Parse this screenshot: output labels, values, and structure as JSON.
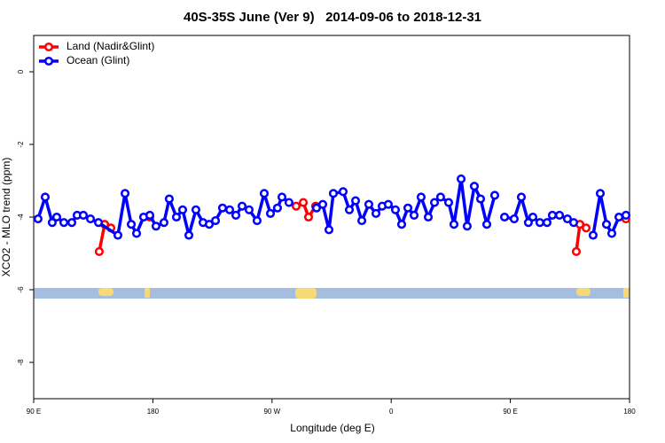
{
  "chart_data": {
    "type": "line",
    "title": "40S-35S June (Ver 9)   2014-09-06 to 2018-12-31",
    "xlabel": "Longitude (deg E)",
    "ylabel": "XCO2 - MLO trend (ppm)",
    "xlim": [
      90,
      540
    ],
    "xticks": [
      {
        "value": 90,
        "label": "90 E"
      },
      {
        "value": 180,
        "label": "180"
      },
      {
        "value": 270,
        "label": "90 W"
      },
      {
        "value": 360,
        "label": "0"
      },
      {
        "value": 450,
        "label": "90 E"
      },
      {
        "value": 540,
        "label": "180"
      }
    ],
    "ylim": [
      -9,
      1
    ],
    "yticks": [
      0,
      -2,
      -4,
      -6,
      -8
    ],
    "legend": "top-left",
    "series": [
      {
        "name": "Land (Nadir&Glint)",
        "color": "#ff0000",
        "x": [
          139.5,
          143.6,
          148.3,
          null,
          177.7,
          null,
          288.2,
          293.6,
          297.6,
          302.9,
          null,
          499.8,
          502.5,
          507.2,
          null,
          537.3
        ],
        "values": [
          -4.95,
          -4.2,
          -4.3,
          null,
          -4.0,
          null,
          -3.7,
          -3.6,
          -4.0,
          -3.7,
          null,
          -4.95,
          -4.2,
          -4.3,
          null,
          -4.05
        ]
      },
      {
        "name": "Ocean (Glint)",
        "color": "#0000ff",
        "x": [
          93.3,
          98.7,
          104,
          107.4,
          112.8,
          118.8,
          122.8,
          127.5,
          132.9,
          138.9,
          153.6,
          159,
          163.7,
          167.7,
          173,
          177.7,
          182.4,
          188.4,
          192.4,
          197.8,
          202.5,
          207.2,
          212.5,
          217.9,
          222.6,
          227.3,
          232.6,
          238,
          242.7,
          247.4,
          252.7,
          258.7,
          264.1,
          268.8,
          274.1,
          277.5,
          282.8,
          null,
          303.6,
          308.3,
          313,
          316.3,
          323.7,
          328.4,
          333.1,
          337.8,
          343.1,
          348.5,
          353.2,
          357.8,
          363.2,
          367.9,
          372.6,
          377.3,
          382.6,
          388,
          392.7,
          397.3,
          403.4,
          407.4,
          412.8,
          417.4,
          422.8,
          427.5,
          432.2,
          438.2,
          null,
          445.6,
          452.9,
          458.3,
          463.6,
          467,
          472.3,
          477.7,
          481.7,
          487.1,
          493.1,
          497.8,
          null,
          512.5,
          517.9,
          522.6,
          526.6,
          532,
          537.3
        ],
        "values": [
          -4.05,
          -3.45,
          -4.15,
          -4.0,
          -4.15,
          -4.15,
          -3.95,
          -3.95,
          -4.05,
          -4.15,
          -4.5,
          -3.35,
          -4.2,
          -4.45,
          -4.0,
          -3.95,
          -4.25,
          -4.15,
          -3.5,
          -4.0,
          -3.8,
          -4.5,
          -3.8,
          -4.15,
          -4.2,
          -4.1,
          -3.75,
          -3.8,
          -3.95,
          -3.7,
          -3.8,
          -4.1,
          -3.35,
          -3.9,
          -3.75,
          -3.45,
          -3.6,
          null,
          -3.75,
          -3.65,
          -4.35,
          -3.35,
          -3.3,
          -3.8,
          -3.55,
          -4.1,
          -3.65,
          -3.9,
          -3.7,
          -3.65,
          -3.8,
          -4.2,
          -3.75,
          -3.95,
          -3.45,
          -4.0,
          -3.6,
          -3.45,
          -3.6,
          -4.2,
          -2.95,
          -4.25,
          -3.15,
          -3.5,
          -4.2,
          -3.4,
          null,
          -4.0,
          -4.05,
          -3.45,
          -4.15,
          -4.0,
          -4.15,
          -4.15,
          -3.95,
          -3.95,
          -4.05,
          -4.15,
          null,
          -4.5,
          -3.35,
          -4.2,
          -4.45,
          -4.0,
          -3.95
        ]
      }
    ]
  }
}
